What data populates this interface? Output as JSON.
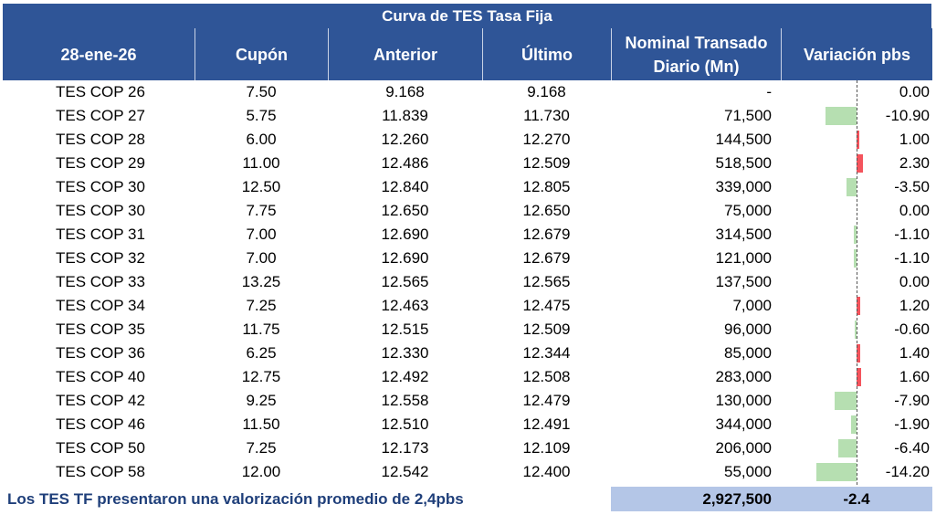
{
  "title": "Curva de TES Tasa Fija",
  "headers": {
    "date": "28-ene-26",
    "cupon": "Cupón",
    "anterior": "Anterior",
    "ultimo": "Último",
    "nominal_line1": "Nominal Transado",
    "nominal_line2": "Diario (Mn)",
    "variacion": "Variación pbs"
  },
  "rows": [
    {
      "name": "TES COP 26",
      "cupon": "7.50",
      "anterior": "9.168",
      "ultimo": "9.168",
      "nominal": "-",
      "variacion": "0.00",
      "var_value": 0.0
    },
    {
      "name": "TES COP 27",
      "cupon": "5.75",
      "anterior": "11.839",
      "ultimo": "11.730",
      "nominal": "71,500",
      "variacion": "-10.90",
      "var_value": -10.9
    },
    {
      "name": "TES COP 28",
      "cupon": "6.00",
      "anterior": "12.260",
      "ultimo": "12.270",
      "nominal": "144,500",
      "variacion": "1.00",
      "var_value": 1.0
    },
    {
      "name": "TES COP 29",
      "cupon": "11.00",
      "anterior": "12.486",
      "ultimo": "12.509",
      "nominal": "518,500",
      "variacion": "2.30",
      "var_value": 2.3
    },
    {
      "name": "TES COP 30",
      "cupon": "12.50",
      "anterior": "12.840",
      "ultimo": "12.805",
      "nominal": "339,000",
      "variacion": "-3.50",
      "var_value": -3.5
    },
    {
      "name": "TES COP 30",
      "cupon": "7.75",
      "anterior": "12.650",
      "ultimo": "12.650",
      "nominal": "75,000",
      "variacion": "0.00",
      "var_value": 0.0
    },
    {
      "name": "TES COP 31",
      "cupon": "7.00",
      "anterior": "12.690",
      "ultimo": "12.679",
      "nominal": "314,500",
      "variacion": "-1.10",
      "var_value": -1.1
    },
    {
      "name": "TES COP 32",
      "cupon": "7.00",
      "anterior": "12.690",
      "ultimo": "12.679",
      "nominal": "121,000",
      "variacion": "-1.10",
      "var_value": -1.1
    },
    {
      "name": "TES COP 33",
      "cupon": "13.25",
      "anterior": "12.565",
      "ultimo": "12.565",
      "nominal": "137,500",
      "variacion": "0.00",
      "var_value": 0.0
    },
    {
      "name": "TES COP 34",
      "cupon": "7.25",
      "anterior": "12.463",
      "ultimo": "12.475",
      "nominal": "7,000",
      "variacion": "1.20",
      "var_value": 1.2
    },
    {
      "name": "TES COP 35",
      "cupon": "11.75",
      "anterior": "12.515",
      "ultimo": "12.509",
      "nominal": "96,000",
      "variacion": "-0.60",
      "var_value": -0.6
    },
    {
      "name": "TES COP 36",
      "cupon": "6.25",
      "anterior": "12.330",
      "ultimo": "12.344",
      "nominal": "85,000",
      "variacion": "1.40",
      "var_value": 1.4
    },
    {
      "name": "TES COP 40",
      "cupon": "12.75",
      "anterior": "12.492",
      "ultimo": "12.508",
      "nominal": "283,000",
      "variacion": "1.60",
      "var_value": 1.6
    },
    {
      "name": "TES COP 42",
      "cupon": "9.25",
      "anterior": "12.558",
      "ultimo": "12.479",
      "nominal": "130,000",
      "variacion": "-7.90",
      "var_value": -7.9
    },
    {
      "name": "TES COP 46",
      "cupon": "11.50",
      "anterior": "12.510",
      "ultimo": "12.491",
      "nominal": "344,000",
      "variacion": "-1.90",
      "var_value": -1.9
    },
    {
      "name": "TES COP 50",
      "cupon": "7.25",
      "anterior": "12.173",
      "ultimo": "12.109",
      "nominal": "206,000",
      "variacion": "-6.40",
      "var_value": -6.4
    },
    {
      "name": "TES COP 58",
      "cupon": "12.00",
      "anterior": "12.542",
      "ultimo": "12.400",
      "nominal": "55,000",
      "variacion": "-14.20",
      "var_value": -14.2
    }
  ],
  "footer": {
    "text": "Los TES TF presentaron una valorización promedio de 2,4pbs",
    "total_nominal": "2,927,500",
    "avg_variacion": "-2.4"
  },
  "colors": {
    "header_bg": "#2f5597",
    "negative_bar": "#b6dfb1",
    "positive_bar": "#f4545d",
    "footer_bg": "#b4c6e7"
  }
}
